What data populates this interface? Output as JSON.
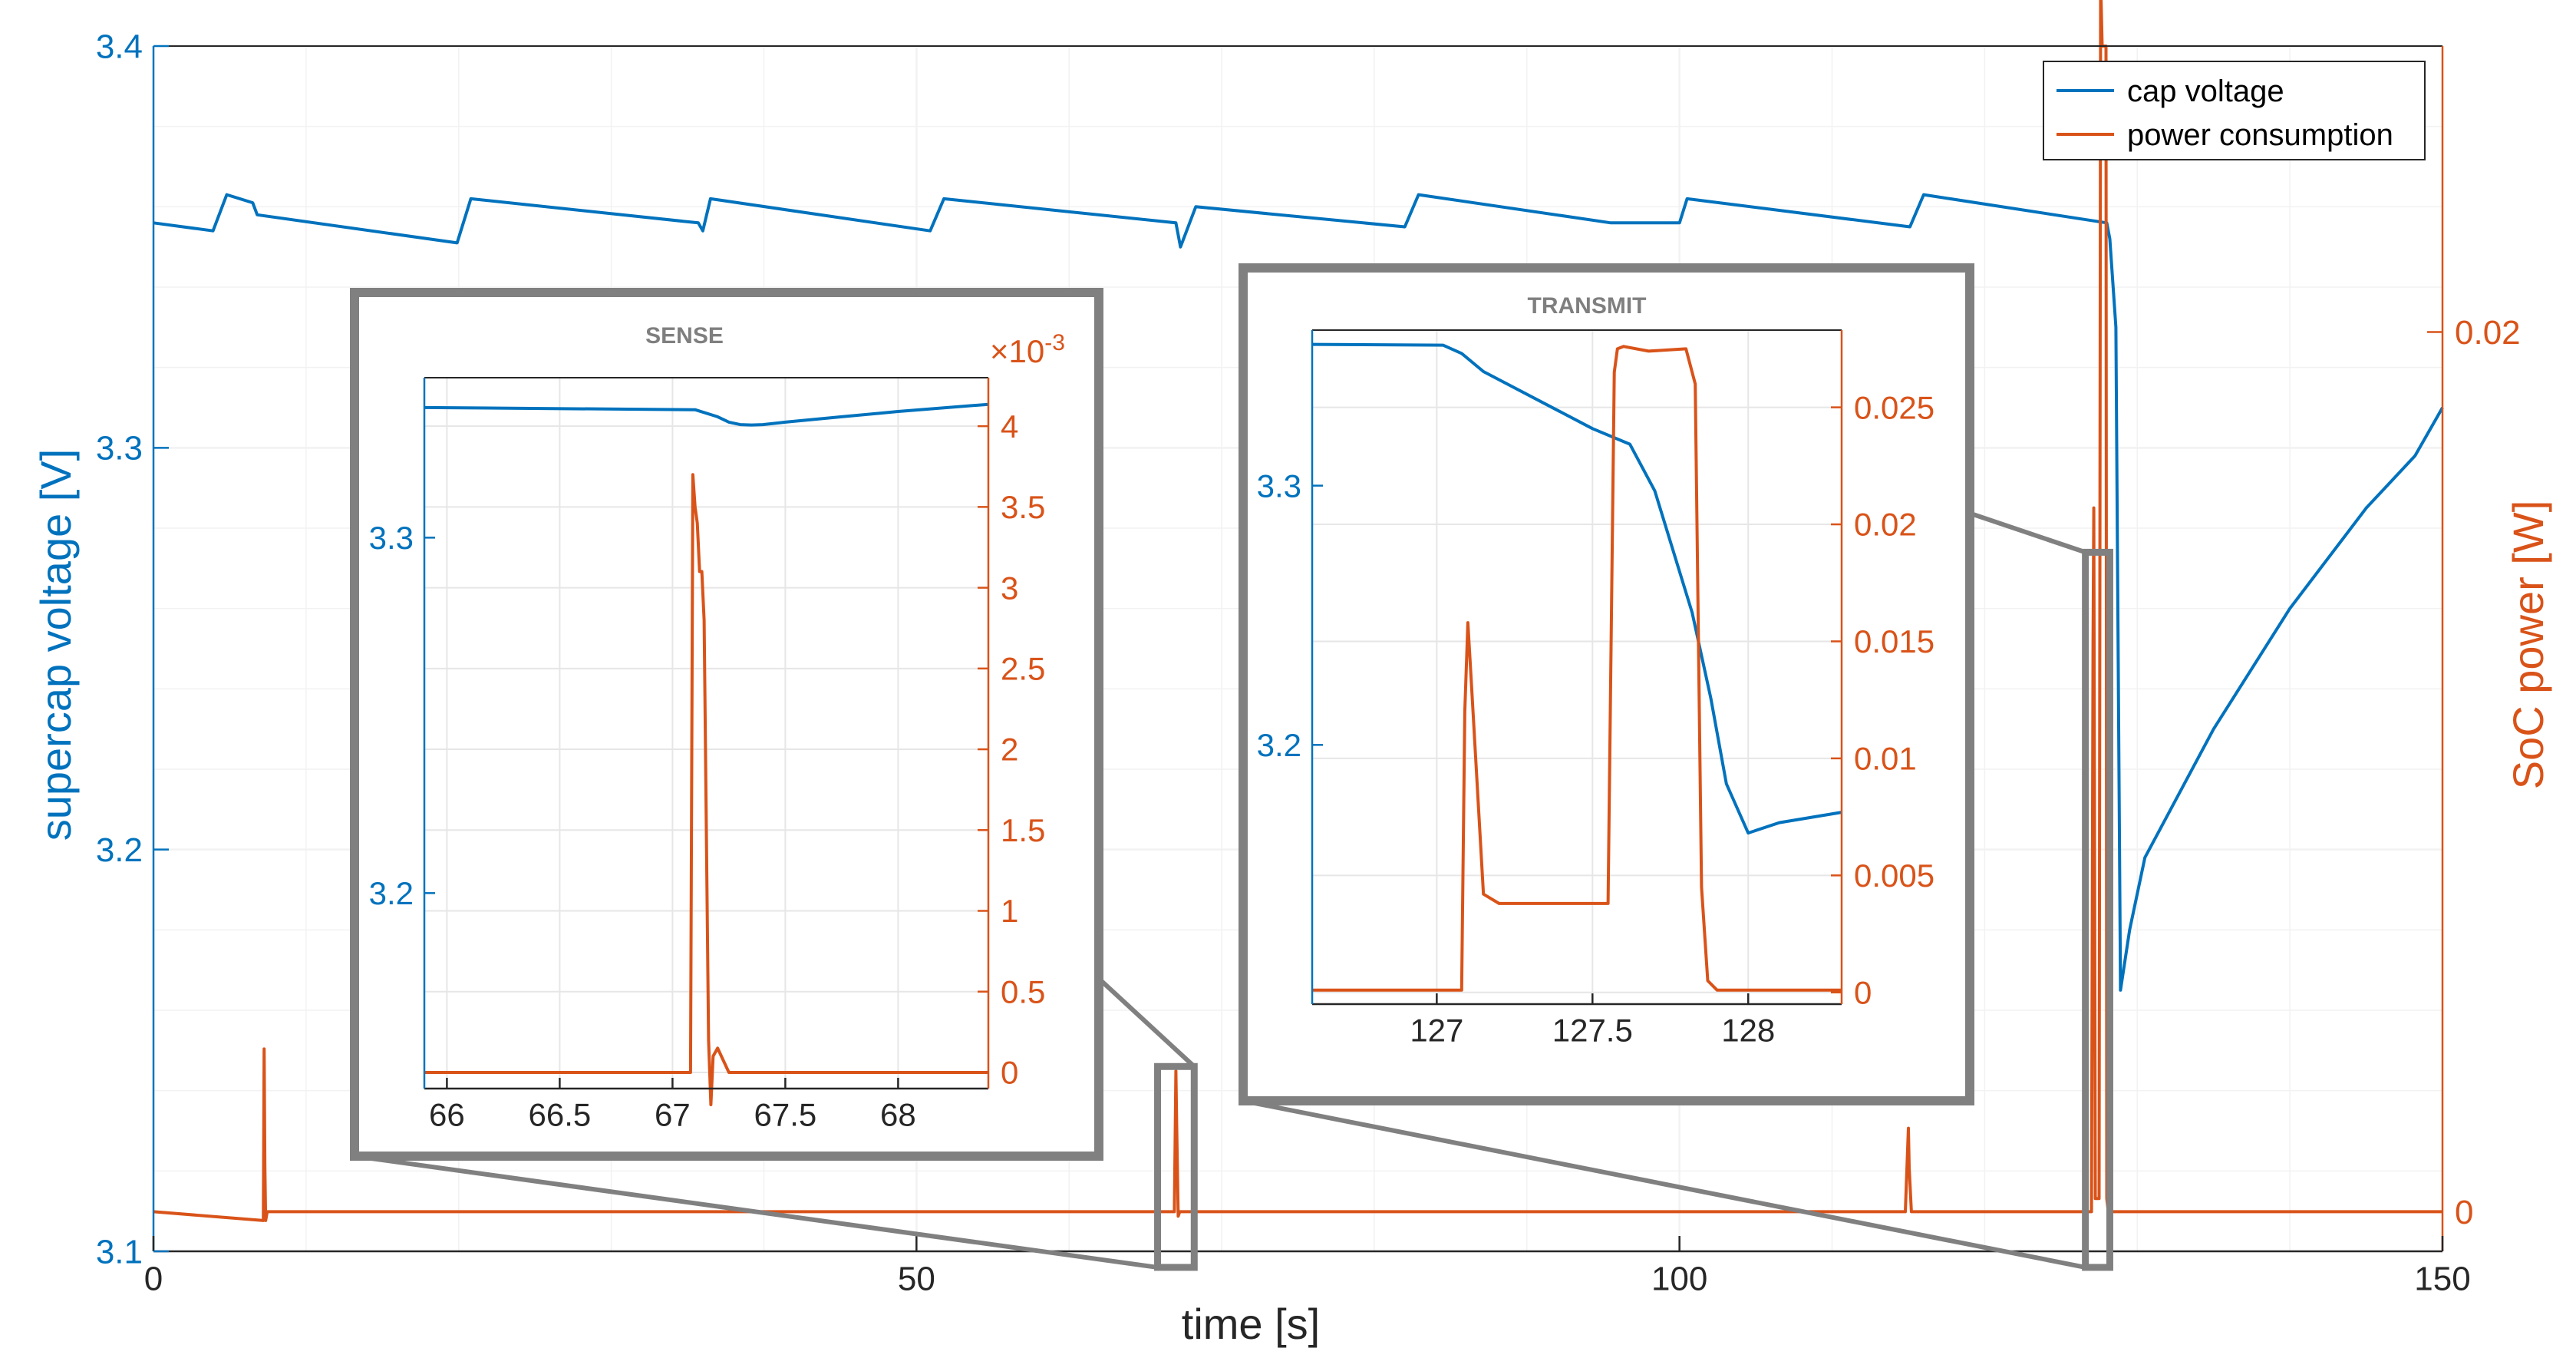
{
  "colors": {
    "voltage": "#0072BD",
    "power": "#D95319",
    "axis": "#262626",
    "grid": "#e6e6e6",
    "zoom_box": "#808080"
  },
  "chart_data": [
    {
      "id": "main",
      "type": "line",
      "xlabel": "time [s]",
      "ylabel_left": "supercap voltage [V]",
      "ylabel_right": "SoC power [W]",
      "xlim": [
        0,
        150
      ],
      "ylim_left": [
        3.1,
        3.4
      ],
      "ylim_right": [
        -0.0009,
        0.0265
      ],
      "x_ticks": [
        0,
        50,
        100,
        150
      ],
      "x_tick_labels": [
        "0",
        "50",
        "100",
        "150"
      ],
      "y_left_ticks": [
        3.1,
        3.2,
        3.3,
        3.4
      ],
      "y_left_tick_labels": [
        "3.1",
        "3.2",
        "3.3",
        "3.4"
      ],
      "y_right_ticks": [
        0,
        0.02
      ],
      "y_right_tick_labels": [
        "0",
        "0.02"
      ],
      "legend": {
        "position": "top-right",
        "entries": [
          "cap voltage",
          "power consumption"
        ]
      },
      "series": [
        {
          "name": "cap voltage",
          "axis": "left",
          "x": [
            0,
            3.9,
            4.8,
            6.5,
            6.8,
            19.9,
            20.8,
            35.7,
            36.0,
            36.5,
            50.9,
            51.8,
            67.0,
            67.3,
            68.3,
            82.0,
            82.9,
            95.5,
            100.0,
            100.5,
            115.1,
            116.0,
            128.0,
            128.2,
            128.6,
            128.9,
            129.5,
            130.5,
            135,
            140,
            145,
            148.2,
            150
          ],
          "values": [
            3.356,
            3.354,
            3.363,
            3.361,
            3.358,
            3.351,
            3.362,
            3.356,
            3.354,
            3.362,
            3.354,
            3.362,
            3.356,
            3.35,
            3.36,
            3.355,
            3.363,
            3.356,
            3.356,
            3.362,
            3.355,
            3.363,
            3.356,
            3.352,
            3.33,
            3.165,
            3.18,
            3.198,
            3.23,
            3.26,
            3.285,
            3.298,
            3.31
          ]
        },
        {
          "name": "power consumption",
          "axis": "right",
          "x": [
            0,
            7.2,
            7.25,
            7.3,
            7.35,
            7.45,
            66.9,
            67.0,
            67.05,
            67.15,
            67.25,
            114.8,
            115.0,
            115.05,
            115.2,
            127.0,
            127.1,
            127.15,
            127.25,
            127.5,
            127.6,
            127.7,
            127.95,
            128.0,
            128.1,
            150
          ],
          "values": [
            0,
            -0.0002,
            0.0037,
            0.001,
            -0.0002,
            0,
            0,
            0.0032,
            0.002,
            -0.0001,
            0,
            0,
            0.0019,
            0.001,
            0,
            0,
            0.0129,
            0.016,
            0.0003,
            0.0003,
            0.028,
            0.0265,
            0.0265,
            0.0003,
            0,
            0
          ]
        }
      ],
      "zoom_regions": [
        {
          "label": "SENSE",
          "xlim": [
            65.8,
            68.2
          ],
          "ylim": [
            3.096,
            3.146
          ]
        },
        {
          "label": "TRANSMIT",
          "xlim": [
            126.6,
            128.2
          ],
          "ylim": [
            3.096,
            3.274
          ]
        }
      ]
    },
    {
      "id": "inset_sense",
      "type": "line",
      "title": "SENSE",
      "xlim": [
        65.9,
        68.4
      ],
      "ylim_left": [
        3.145,
        3.345
      ],
      "ylim_right": [
        -0.0001,
        0.0043
      ],
      "x_ticks": [
        66,
        66.5,
        67,
        67.5,
        68
      ],
      "x_tick_labels": [
        "66",
        "66.5",
        "67",
        "67.5",
        "68"
      ],
      "y_left_ticks": [
        3.2,
        3.3
      ],
      "y_left_tick_labels": [
        "3.2",
        "3.3"
      ],
      "y_right_ticks": [
        0,
        0.0005,
        0.001,
        0.0015,
        0.002,
        0.0025,
        0.003,
        0.0035,
        0.004
      ],
      "y_right_tick_labels": [
        "0",
        "0.5",
        "1",
        "1.5",
        "2",
        "2.5",
        "3",
        "3.5",
        "4"
      ],
      "y_right_exponent": "×10^-3",
      "series": [
        {
          "name": "cap voltage",
          "axis": "left",
          "x": [
            65.9,
            67.1,
            67.2,
            67.25,
            67.3,
            67.35,
            67.4,
            67.5,
            67.75,
            68.0,
            68.4
          ],
          "values": [
            3.3366,
            3.336,
            3.334,
            3.3325,
            3.3318,
            3.3317,
            3.3318,
            3.3325,
            3.334,
            3.3355,
            3.3375
          ]
        },
        {
          "name": "power consumption",
          "axis": "right",
          "x": [
            65.9,
            67.08,
            67.09,
            67.1,
            67.11,
            67.12,
            67.13,
            67.14,
            67.16,
            67.17,
            67.18,
            67.2,
            67.25,
            67.3,
            68.4
          ],
          "values": [
            0,
            0,
            0.0037,
            0.0035,
            0.0034,
            0.0031,
            0.0031,
            0.0028,
            0.0002,
            -0.0002,
            0.0001,
            0.00015,
            0,
            0,
            0
          ]
        }
      ]
    },
    {
      "id": "inset_transmit",
      "type": "line",
      "title": "TRANSMIT",
      "xlim": [
        126.6,
        128.3
      ],
      "ylim_left": [
        3.1,
        3.36
      ],
      "ylim_right": [
        -0.0005,
        0.0283
      ],
      "x_ticks": [
        127,
        127.5,
        128
      ],
      "x_tick_labels": [
        "127",
        "127.5",
        "128"
      ],
      "y_left_ticks": [
        3.2,
        3.3
      ],
      "y_left_tick_labels": [
        "3.2",
        "3.3"
      ],
      "y_right_ticks": [
        0,
        0.005,
        0.01,
        0.015,
        0.02,
        0.025
      ],
      "y_right_tick_labels": [
        "0",
        "0.005",
        "0.01",
        "0.015",
        "0.02",
        "0.025"
      ],
      "series": [
        {
          "name": "cap voltage",
          "axis": "left",
          "x": [
            126.6,
            127.02,
            127.08,
            127.15,
            127.5,
            127.62,
            127.7,
            127.82,
            127.88,
            127.93,
            128.0,
            128.1,
            128.3
          ],
          "values": [
            3.3545,
            3.3542,
            3.351,
            3.344,
            3.322,
            3.316,
            3.298,
            3.251,
            3.218,
            3.185,
            3.166,
            3.17,
            3.174
          ]
        },
        {
          "name": "power consumption",
          "axis": "right",
          "x": [
            126.6,
            127.08,
            127.09,
            127.1,
            127.11,
            127.15,
            127.2,
            127.55,
            127.57,
            127.58,
            127.6,
            127.68,
            127.8,
            127.83,
            127.85,
            127.87,
            127.9,
            128.3
          ],
          "values": [
            0.0001,
            0.0001,
            0.012,
            0.0158,
            0.0135,
            0.0042,
            0.0038,
            0.0038,
            0.0265,
            0.0275,
            0.0276,
            0.0274,
            0.0275,
            0.026,
            0.0045,
            0.0005,
            0.0001,
            0.0001
          ]
        }
      ]
    }
  ]
}
